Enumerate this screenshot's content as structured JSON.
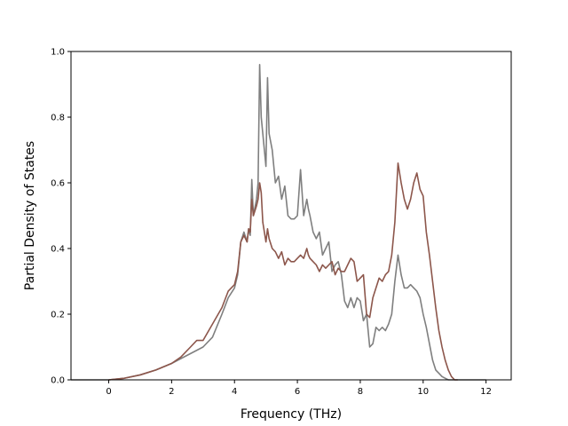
{
  "chart_data": {
    "type": "line",
    "title": "",
    "xlabel": "Frequency (THz)",
    "ylabel": "Partial Density of States",
    "xlim": [
      -1.2,
      12.8
    ],
    "ylim": [
      0.0,
      1.0
    ],
    "xticks": [
      0,
      2,
      4,
      6,
      8,
      10,
      12
    ],
    "yticks": [
      0.0,
      0.2,
      0.4,
      0.6,
      0.8,
      1.0
    ],
    "grid": false,
    "legend": "none",
    "series": [
      {
        "color": "#7f7f7f",
        "x": [
          -1.2,
          0.0,
          0.5,
          1.0,
          1.5,
          2.0,
          2.5,
          3.0,
          3.3,
          3.6,
          3.8,
          4.0,
          4.1,
          4.2,
          4.3,
          4.4,
          4.45,
          4.5,
          4.55,
          4.6,
          4.7,
          4.75,
          4.8,
          4.85,
          4.9,
          5.0,
          5.05,
          5.1,
          5.2,
          5.3,
          5.4,
          5.5,
          5.6,
          5.7,
          5.8,
          5.9,
          6.0,
          6.1,
          6.2,
          6.3,
          6.35,
          6.4,
          6.5,
          6.6,
          6.7,
          6.8,
          6.9,
          7.0,
          7.1,
          7.2,
          7.3,
          7.4,
          7.5,
          7.6,
          7.7,
          7.8,
          7.9,
          8.0,
          8.1,
          8.2,
          8.3,
          8.4,
          8.5,
          8.6,
          8.7,
          8.8,
          8.9,
          9.0,
          9.1,
          9.2,
          9.3,
          9.4,
          9.5,
          9.6,
          9.7,
          9.8,
          9.9,
          10.0,
          10.1,
          10.2,
          10.3,
          10.4,
          10.5,
          10.6,
          10.7,
          10.8,
          10.9,
          11.0,
          11.3,
          12.0
        ],
        "y": [
          0.0,
          0.0,
          0.005,
          0.015,
          0.03,
          0.05,
          0.075,
          0.1,
          0.13,
          0.2,
          0.25,
          0.28,
          0.32,
          0.42,
          0.45,
          0.42,
          0.46,
          0.44,
          0.61,
          0.5,
          0.55,
          0.6,
          0.96,
          0.8,
          0.75,
          0.65,
          0.92,
          0.75,
          0.7,
          0.6,
          0.62,
          0.55,
          0.59,
          0.5,
          0.49,
          0.49,
          0.5,
          0.64,
          0.5,
          0.55,
          0.52,
          0.5,
          0.45,
          0.43,
          0.45,
          0.38,
          0.4,
          0.42,
          0.33,
          0.35,
          0.36,
          0.32,
          0.24,
          0.22,
          0.25,
          0.22,
          0.25,
          0.24,
          0.18,
          0.2,
          0.1,
          0.11,
          0.16,
          0.15,
          0.16,
          0.15,
          0.17,
          0.2,
          0.3,
          0.38,
          0.32,
          0.28,
          0.28,
          0.29,
          0.28,
          0.27,
          0.25,
          0.2,
          0.16,
          0.11,
          0.06,
          0.03,
          0.02,
          0.01,
          0.005,
          0.0,
          0.0,
          0.0,
          0.0,
          0.0
        ]
      },
      {
        "color": "#8c564b",
        "x": [
          0.0,
          0.5,
          1.0,
          1.5,
          2.0,
          2.3,
          2.6,
          2.8,
          3.0,
          3.3,
          3.6,
          3.8,
          4.0,
          4.1,
          4.2,
          4.3,
          4.4,
          4.45,
          4.5,
          4.55,
          4.6,
          4.7,
          4.75,
          4.8,
          4.85,
          4.9,
          5.0,
          5.05,
          5.1,
          5.2,
          5.3,
          5.4,
          5.5,
          5.6,
          5.7,
          5.8,
          5.9,
          6.0,
          6.1,
          6.2,
          6.3,
          6.35,
          6.4,
          6.5,
          6.6,
          6.7,
          6.8,
          6.9,
          7.0,
          7.1,
          7.2,
          7.3,
          7.4,
          7.5,
          7.6,
          7.7,
          7.8,
          7.9,
          8.0,
          8.1,
          8.2,
          8.3,
          8.4,
          8.5,
          8.6,
          8.7,
          8.8,
          8.9,
          9.0,
          9.1,
          9.2,
          9.3,
          9.4,
          9.5,
          9.6,
          9.7,
          9.8,
          9.9,
          10.0,
          10.1,
          10.2,
          10.3,
          10.4,
          10.5,
          10.6,
          10.7,
          10.8,
          10.9,
          11.0,
          11.1
        ],
        "y": [
          0.0,
          0.005,
          0.015,
          0.03,
          0.05,
          0.07,
          0.1,
          0.12,
          0.12,
          0.17,
          0.22,
          0.27,
          0.29,
          0.33,
          0.42,
          0.44,
          0.42,
          0.46,
          0.45,
          0.55,
          0.5,
          0.53,
          0.55,
          0.6,
          0.57,
          0.48,
          0.42,
          0.46,
          0.43,
          0.4,
          0.39,
          0.37,
          0.39,
          0.35,
          0.37,
          0.36,
          0.36,
          0.37,
          0.38,
          0.37,
          0.4,
          0.38,
          0.37,
          0.36,
          0.35,
          0.33,
          0.35,
          0.34,
          0.35,
          0.36,
          0.32,
          0.34,
          0.33,
          0.33,
          0.35,
          0.37,
          0.36,
          0.3,
          0.31,
          0.32,
          0.2,
          0.19,
          0.25,
          0.28,
          0.31,
          0.3,
          0.32,
          0.33,
          0.38,
          0.48,
          0.66,
          0.6,
          0.55,
          0.52,
          0.55,
          0.6,
          0.63,
          0.58,
          0.56,
          0.45,
          0.38,
          0.3,
          0.22,
          0.15,
          0.1,
          0.06,
          0.03,
          0.01,
          0.0,
          0.0
        ]
      }
    ]
  }
}
